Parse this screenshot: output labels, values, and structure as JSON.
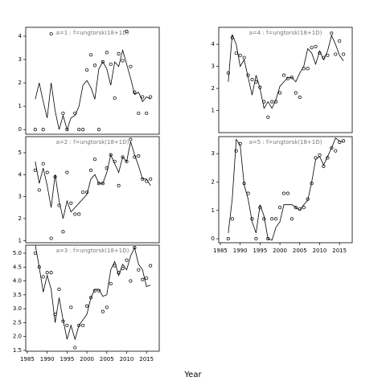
{
  "xlabel": "Year",
  "chart_data": [
    {
      "type": "line",
      "title": "a=1 : f=ungtorsk(18+1D)",
      "x": [
        1987,
        1988,
        1989,
        1990,
        1991,
        1992,
        1993,
        1994,
        1995,
        1996,
        1997,
        1998,
        1999,
        2000,
        2001,
        2002,
        2003,
        2004,
        2005,
        2006,
        2007,
        2008,
        2009,
        2010,
        2011,
        2012,
        2013,
        2014,
        2015,
        2016
      ],
      "xlim": [
        1984.6,
        2018.2
      ],
      "ylim": [
        -0.2,
        4.38
      ],
      "yticks": [
        0,
        1,
        2,
        3,
        4
      ],
      "series": [
        {
          "mode": "markers",
          "color": "#000000",
          "values": [
            0,
            null,
            0,
            null,
            4.1,
            null,
            null,
            0.7,
            0,
            null,
            0.7,
            0,
            0,
            2.55,
            3.2,
            2.75,
            0,
            2.9,
            3.3,
            2.8,
            1.35,
            3.25,
            2.95,
            4.2,
            2.7,
            1.6,
            0.7,
            1.4,
            0.7,
            1.4
          ]
        },
        {
          "mode": "lines",
          "color": "#000000",
          "values": [
            1.3,
            2.0,
            1.2,
            0.5,
            2.0,
            0.8,
            0.0,
            0.6,
            0.0,
            0.5,
            0.6,
            1.0,
            1.9,
            2.1,
            1.8,
            1.3,
            2.6,
            2.9,
            2.6,
            1.9,
            2.9,
            2.7,
            3.4,
            2.8,
            2.2,
            1.5,
            1.6,
            1.2,
            1.4,
            1.3
          ]
        }
      ]
    },
    {
      "type": "line",
      "title": "a=2 : f=ungtorsk(18+1D)",
      "x": [
        1987,
        1988,
        1989,
        1990,
        1991,
        1992,
        1993,
        1994,
        1995,
        1996,
        1997,
        1998,
        1999,
        2000,
        2001,
        2002,
        2003,
        2004,
        2005,
        2006,
        2007,
        2008,
        2009,
        2010,
        2011,
        2012,
        2013,
        2014,
        2015,
        2016
      ],
      "xlim": [
        1984.6,
        2018.2
      ],
      "ylim": [
        0.9,
        5.73
      ],
      "yticks": [
        1,
        2,
        3,
        4,
        5
      ],
      "series": [
        {
          "mode": "markers",
          "color": "#000000",
          "values": [
            4.2,
            3.3,
            4.5,
            4.1,
            1.1,
            3.9,
            2.6,
            1.4,
            4.1,
            2.7,
            2.2,
            2.2,
            3.2,
            3.2,
            4.2,
            4.7,
            3.6,
            3.6,
            4.3,
            4.9,
            4.6,
            3.5,
            4.8,
            4.6,
            5.6,
            4.8,
            4.85,
            3.8,
            3.7,
            3.8
          ]
        },
        {
          "mode": "lines",
          "color": "#000000",
          "values": [
            4.6,
            3.6,
            4.3,
            3.5,
            2.5,
            4.0,
            2.8,
            2.0,
            2.8,
            2.3,
            2.5,
            2.7,
            2.9,
            3.1,
            3.8,
            4.0,
            3.6,
            3.6,
            4.1,
            4.9,
            4.5,
            4.1,
            4.8,
            4.6,
            5.5,
            4.9,
            4.4,
            3.8,
            3.8,
            3.5
          ]
        }
      ]
    },
    {
      "type": "line",
      "title": "a=3 : f=ungtorsk(18+1D)",
      "x": [
        1987,
        1988,
        1989,
        1990,
        1991,
        1992,
        1993,
        1994,
        1995,
        1996,
        1997,
        1998,
        1999,
        2000,
        2001,
        2002,
        2003,
        2004,
        2005,
        2006,
        2007,
        2008,
        2009,
        2010,
        2011,
        2012,
        2013,
        2014,
        2015,
        2016
      ],
      "xlim": [
        1984.6,
        2018.2
      ],
      "ylim": [
        1.47,
        5.29
      ],
      "xticks": [
        1985,
        1990,
        1995,
        2000,
        2005,
        2010,
        2015
      ],
      "yticks": [
        1.5,
        {
          "value": 2,
          "label": "2.0"
        },
        2.5,
        {
          "value": 3,
          "label": "3.0"
        },
        3.5,
        {
          "value": 4,
          "label": "4.0"
        },
        4.5,
        {
          "value": 5,
          "label": "5.0"
        }
      ],
      "series": [
        {
          "mode": "markers",
          "color": "#000000",
          "values": [
            5.0,
            4.5,
            4.15,
            4.3,
            4.3,
            2.8,
            3.7,
            2.55,
            2.4,
            3.05,
            1.6,
            2.4,
            2.4,
            3.1,
            3.4,
            3.65,
            3.65,
            2.9,
            3.05,
            3.9,
            4.55,
            4.3,
            4.45,
            4.75,
            4.0,
            5.2,
            4.4,
            4.05,
            4.1,
            4.55
          ]
        },
        {
          "mode": "lines",
          "color": "#000000",
          "values": [
            5.3,
            4.5,
            3.6,
            4.2,
            3.7,
            2.5,
            3.4,
            2.6,
            1.9,
            2.4,
            1.9,
            2.4,
            2.6,
            2.8,
            3.4,
            3.7,
            3.7,
            3.45,
            3.5,
            4.4,
            4.7,
            4.2,
            4.6,
            4.4,
            4.9,
            5.2,
            4.6,
            4.4,
            3.8,
            3.85
          ]
        }
      ]
    },
    {
      "type": "line",
      "title": "a=4 : f=ungtorsk(18+1D)",
      "x": [
        1987,
        1988,
        1989,
        1990,
        1991,
        1992,
        1993,
        1994,
        1995,
        1996,
        1997,
        1998,
        1999,
        2000,
        2001,
        2002,
        2003,
        2004,
        2005,
        2006,
        2007,
        2008,
        2009,
        2010,
        2011,
        2012,
        2013,
        2014,
        2015,
        2016
      ],
      "xlim": [
        1984.6,
        2018.2
      ],
      "ylim": [
        0,
        4.77
      ],
      "yticks": [
        1,
        2,
        3,
        4
      ],
      "series": [
        {
          "mode": "markers",
          "color": "#000000",
          "values": [
            2.7,
            4.3,
            3.6,
            3.5,
            3.4,
            2.6,
            2.4,
            2.3,
            2.05,
            1.4,
            0.7,
            1.4,
            1.4,
            1.8,
            2.6,
            2.45,
            2.5,
            1.8,
            1.6,
            2.9,
            2.9,
            3.85,
            3.9,
            3.6,
            3.4,
            3.5,
            4.5,
            3.55,
            4.15,
            3.55
          ]
        },
        {
          "mode": "lines",
          "color": "#000000",
          "values": [
            2.3,
            4.45,
            4.0,
            3.0,
            3.3,
            2.5,
            1.7,
            2.6,
            2.0,
            1.1,
            1.4,
            1.1,
            1.5,
            2.1,
            2.3,
            2.5,
            2.5,
            2.3,
            2.7,
            3.0,
            3.8,
            3.6,
            3.1,
            3.7,
            3.3,
            3.7,
            4.4,
            4.0,
            3.5,
            3.25
          ]
        }
      ]
    },
    {
      "type": "line",
      "title": "a=5 : f=ungtorsk(18+1D)",
      "x": [
        1987,
        1988,
        1989,
        1990,
        1991,
        1992,
        1993,
        1994,
        1995,
        1996,
        1997,
        1998,
        1999,
        2000,
        2001,
        2002,
        2003,
        2004,
        2005,
        2006,
        2007,
        2008,
        2009,
        2010,
        2011,
        2012,
        2013,
        2014,
        2015,
        2016
      ],
      "xlim": [
        1984.6,
        2018.2
      ],
      "ylim": [
        -0.14,
        3.6
      ],
      "xticks": [
        1985,
        1990,
        1995,
        2000,
        2005,
        2010,
        2015
      ],
      "yticks": [
        0,
        1,
        2,
        3
      ],
      "series": [
        {
          "mode": "markers",
          "color": "#000000",
          "values": [
            0,
            0.7,
            3.1,
            3.35,
            1.95,
            1.6,
            0.7,
            0,
            1.1,
            0.7,
            0,
            0.7,
            0.7,
            1.1,
            1.6,
            1.6,
            0.7,
            1.1,
            1.05,
            1.1,
            1.4,
            1.95,
            2.85,
            2.95,
            2.55,
            2.85,
            3.2,
            3.1,
            3.4,
            3.45
          ]
        },
        {
          "mode": "lines",
          "color": "#000000",
          "values": [
            0.2,
            1.4,
            3.5,
            3.3,
            1.9,
            1.4,
            0.6,
            0.2,
            1.2,
            0.8,
            0.0,
            -0.05,
            0.4,
            0.6,
            1.2,
            1.2,
            1.2,
            1.1,
            1.0,
            1.2,
            1.35,
            2.0,
            2.8,
            2.9,
            2.6,
            2.9,
            3.2,
            3.55,
            3.45,
            3.4
          ]
        }
      ]
    }
  ]
}
